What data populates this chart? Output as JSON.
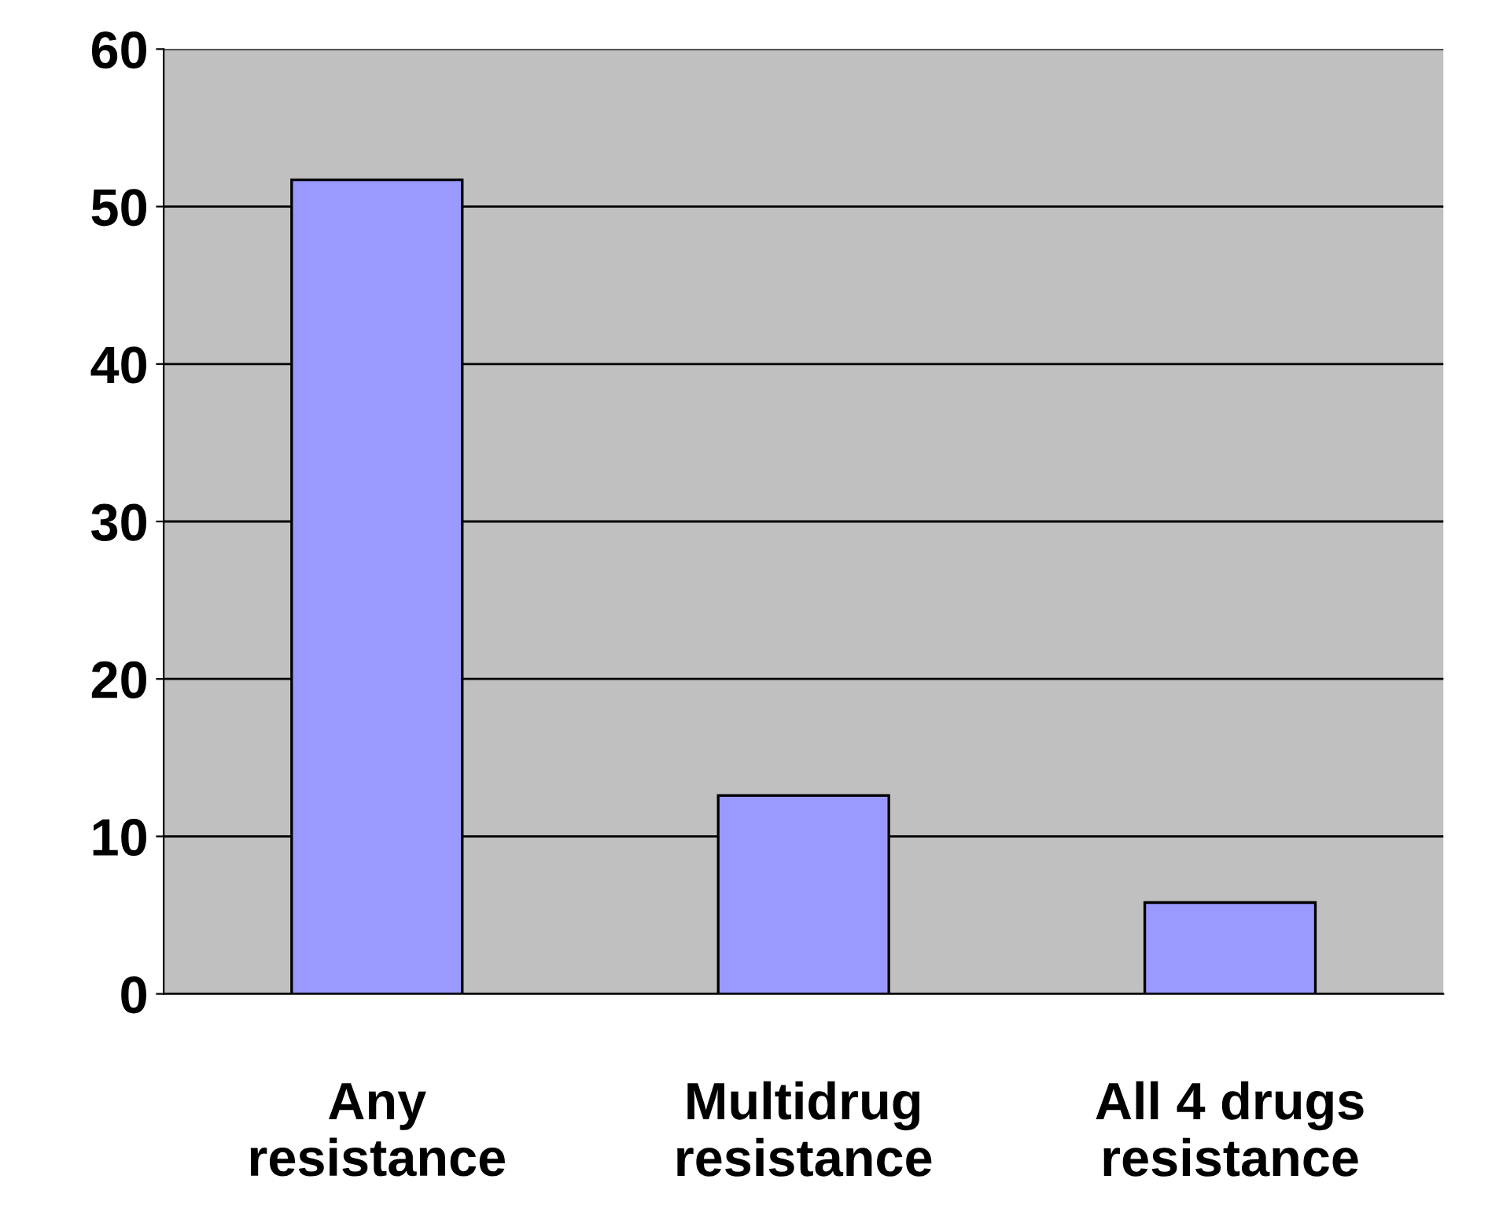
{
  "chart_data": {
    "type": "bar",
    "categories": [
      "Any\nresistance",
      "Multidrug\nresistance",
      "All 4 drugs\nresistance"
    ],
    "values": [
      51.7,
      12.6,
      5.8
    ],
    "color": "#9999ff",
    "ylim": [
      0,
      60
    ],
    "yticks": [
      0,
      10,
      20,
      30,
      40,
      50,
      60
    ],
    "grid": "y"
  }
}
